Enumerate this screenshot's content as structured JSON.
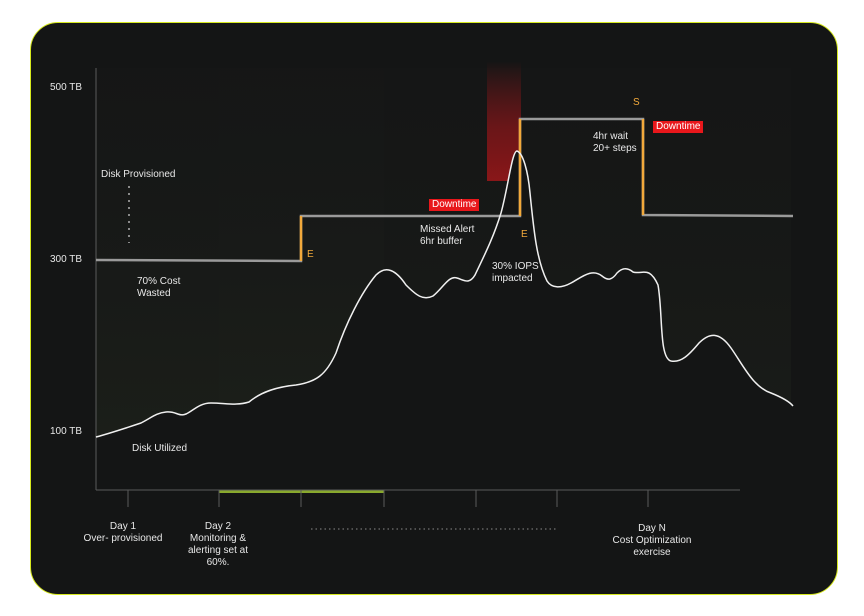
{
  "colors": {
    "background": "#141515",
    "border": "#d6e81e",
    "provisioned": "#9a9a9a",
    "utilized": "#f0f0f0",
    "event_marker": "#f2a93b",
    "downtime": "#e8171b",
    "green_fill": "#8fb12e"
  },
  "axis": {
    "y_labels": [
      "500 TB",
      "300 TB",
      "100 TB"
    ]
  },
  "chart_data": {
    "type": "line",
    "y_ticks": [
      500,
      300,
      100
    ],
    "y_unit": "TB",
    "categories": [
      "Day 1\nOver- provisioned",
      "Day 2\nMonitoring &\nalerting set at\n60%.",
      "Day N\nCost Optimization\nexercise"
    ],
    "series": [
      {
        "name": "Disk Provisioned",
        "steps_tb": [
          300,
          350,
          460,
          350
        ]
      },
      {
        "name": "Disk Utilized"
      }
    ]
  },
  "labels": {
    "disk_provisioned": "Disk Provisioned",
    "cost_wasted_1": "70% Cost",
    "cost_wasted_2": "Wasted",
    "missed_alert_1": "Missed Alert",
    "missed_alert_2": "6hr buffer",
    "iops_1": "30% IOPS",
    "iops_2": "impacted",
    "wait_1": "4hr wait",
    "wait_2": "20+ steps",
    "disk_utilized": "Disk Utilized",
    "downtime_1": "Downtime",
    "downtime_2": "Downtime",
    "marker_e1": "E",
    "marker_e2": "E",
    "marker_s": "S"
  },
  "x_labels": {
    "day1_l1": "Day 1",
    "day1_l2": "Over- provisioned",
    "day2_l1": "Day 2",
    "day2_l2": "Monitoring &",
    "day2_l3": "alerting set at",
    "day2_l4": "60%.",
    "dayn_l1": "Day N",
    "dayn_l2": "Cost Optimization",
    "dayn_l3": "exercise"
  }
}
